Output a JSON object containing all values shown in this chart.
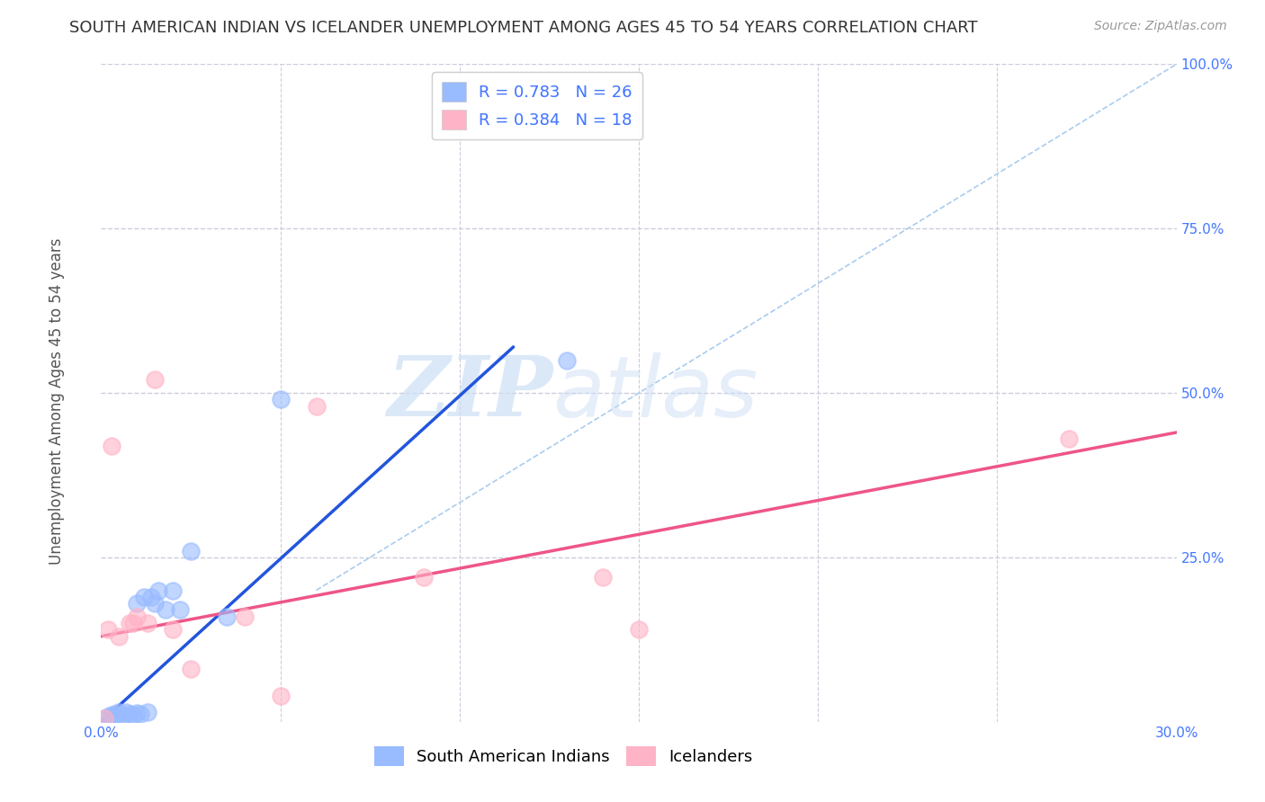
{
  "title": "SOUTH AMERICAN INDIAN VS ICELANDER UNEMPLOYMENT AMONG AGES 45 TO 54 YEARS CORRELATION CHART",
  "source": "Source: ZipAtlas.com",
  "ylabel": "Unemployment Among Ages 45 to 54 years",
  "xlim": [
    0,
    0.3
  ],
  "ylim": [
    0,
    1.0
  ],
  "xticks": [
    0.0,
    0.05,
    0.1,
    0.15,
    0.2,
    0.25,
    0.3
  ],
  "yticks": [
    0.0,
    0.25,
    0.5,
    0.75,
    1.0
  ],
  "blue_color": "#99BBFF",
  "pink_color": "#FFB3C6",
  "blue_line_color": "#2255DD",
  "pink_line_color": "#EE5588",
  "diag_line_color": "#AACCEE",
  "axis_tick_color": "#4477FF",
  "legend_r1": "0.783",
  "legend_n1": "26",
  "legend_r2": "0.384",
  "legend_n2": "18",
  "blue_scatter_x": [
    0.001,
    0.002,
    0.003,
    0.003,
    0.004,
    0.005,
    0.005,
    0.006,
    0.007,
    0.008,
    0.009,
    0.01,
    0.01,
    0.011,
    0.012,
    0.013,
    0.014,
    0.015,
    0.016,
    0.018,
    0.02,
    0.022,
    0.025,
    0.035,
    0.05,
    0.13
  ],
  "blue_scatter_y": [
    0.005,
    0.008,
    0.006,
    0.01,
    0.012,
    0.01,
    0.015,
    0.008,
    0.015,
    0.012,
    0.01,
    0.014,
    0.18,
    0.012,
    0.19,
    0.015,
    0.19,
    0.18,
    0.2,
    0.17,
    0.2,
    0.17,
    0.26,
    0.16,
    0.49,
    0.55
  ],
  "pink_scatter_x": [
    0.001,
    0.002,
    0.003,
    0.005,
    0.008,
    0.009,
    0.01,
    0.013,
    0.015,
    0.02,
    0.025,
    0.04,
    0.05,
    0.06,
    0.09,
    0.14,
    0.15,
    0.27
  ],
  "pink_scatter_y": [
    0.005,
    0.14,
    0.42,
    0.13,
    0.15,
    0.15,
    0.16,
    0.15,
    0.52,
    0.14,
    0.08,
    0.16,
    0.04,
    0.48,
    0.22,
    0.22,
    0.14,
    0.43
  ],
  "blue_line_x": [
    0.0,
    0.115
  ],
  "blue_line_y": [
    0.0,
    0.57
  ],
  "pink_line_x": [
    0.0,
    0.3
  ],
  "pink_line_y": [
    0.13,
    0.44
  ],
  "diag_line_x": [
    0.06,
    0.3
  ],
  "diag_line_y": [
    0.2,
    1.0
  ],
  "watermark_zip": "ZIP",
  "watermark_atlas": "atlas",
  "background_color": "#FFFFFF",
  "grid_color": "#CCCCDD",
  "title_fontsize": 13,
  "label_fontsize": 12,
  "tick_fontsize": 11,
  "legend_fontsize": 13,
  "circle_size": 180
}
